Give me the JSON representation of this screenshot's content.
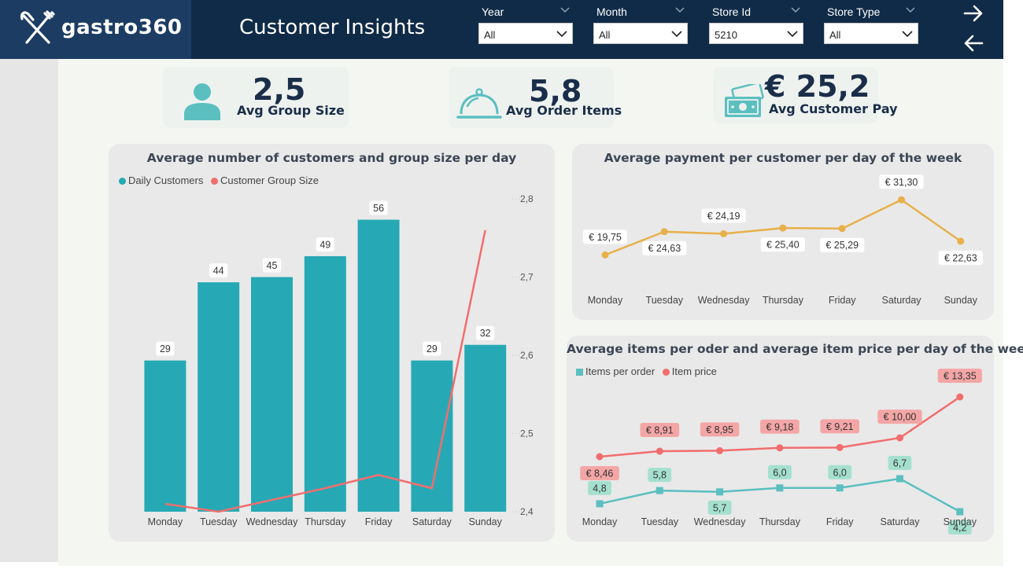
{
  "header": {
    "logo_text": "gastro360",
    "title": "Customer Insights",
    "filters": [
      {
        "label": "Year",
        "value": "All"
      },
      {
        "label": "Month",
        "value": "All"
      },
      {
        "label": "Store Id",
        "value": "5210"
      },
      {
        "label": "Store Type",
        "value": "All"
      }
    ],
    "icons": {
      "logo": "fork-knife-icon",
      "forward": "arrow-right-icon",
      "back": "arrow-left-icon"
    }
  },
  "kpis": [
    {
      "value": "2,5",
      "label": "Avg Group Size",
      "icon": "person-icon"
    },
    {
      "value": "5,8",
      "label": "Avg Order Items",
      "icon": "cloche-icon"
    },
    {
      "value": "€ 25,2",
      "label": "Avg Customer Pay",
      "icon": "money-icon"
    }
  ],
  "colors": {
    "teal": "#26a9b5",
    "red": "#f26d6d",
    "gold": "#e8b04a",
    "navy": "#102b47"
  },
  "chart_data": [
    {
      "type": "bar",
      "title": "Average number of customers and group size per day",
      "categories": [
        "Monday",
        "Tuesday",
        "Wednesday",
        "Thursday",
        "Friday",
        "Saturday",
        "Sunday"
      ],
      "series": [
        {
          "name": "Daily Customers",
          "type": "bar",
          "axis": "left",
          "values": [
            29,
            44,
            45,
            49,
            56,
            29,
            32
          ],
          "labels": [
            "29",
            "44",
            "45",
            "49",
            "56",
            "29",
            "32"
          ]
        },
        {
          "name": "Customer Group Size",
          "type": "line",
          "axis": "right",
          "values": [
            2.41,
            2.4,
            2.415,
            2.43,
            2.447,
            2.43,
            2.76
          ]
        }
      ],
      "ylim_left": [
        0,
        60
      ],
      "ylim_right": [
        2.4,
        2.8
      ],
      "right_ticks": [
        "2,8",
        "2,7",
        "2,6",
        "2,5",
        "2,4"
      ],
      "legend": "top-left"
    },
    {
      "type": "line",
      "title": "Average payment per customer per day of the week",
      "categories": [
        "Monday",
        "Tuesday",
        "Wednesday",
        "Thursday",
        "Friday",
        "Saturday",
        "Sunday"
      ],
      "values": [
        19.75,
        24.63,
        24.19,
        25.4,
        25.29,
        31.3,
        22.63
      ],
      "labels": [
        "€ 19,75",
        "€ 24,63",
        "€ 24,19",
        "€ 25,40",
        "€ 25,29",
        "€ 31,30",
        "€ 22,63"
      ],
      "ylim": [
        18,
        32
      ]
    },
    {
      "type": "line",
      "title": "Average items per oder and average item price per day of the week",
      "categories": [
        "Monday",
        "Tuesday",
        "Wednesday",
        "Thursday",
        "Friday",
        "Saturday",
        "Sunday"
      ],
      "series": [
        {
          "name": "Items per order",
          "values": [
            4.8,
            5.8,
            5.7,
            6.0,
            6.0,
            6.7,
            4.2
          ],
          "labels": [
            "4,8",
            "5,8",
            "5,7",
            "6,0",
            "6,0",
            "6,7",
            "4,2"
          ]
        },
        {
          "name": "Item price",
          "values": [
            8.46,
            8.91,
            8.95,
            9.18,
            9.21,
            10.0,
            13.35
          ],
          "labels": [
            "€ 8,46",
            "€ 8,91",
            "€ 8,95",
            "€ 9,18",
            "€ 9,21",
            "€ 10,00",
            "€ 13,35"
          ]
        }
      ],
      "legend": "top-left"
    }
  ]
}
